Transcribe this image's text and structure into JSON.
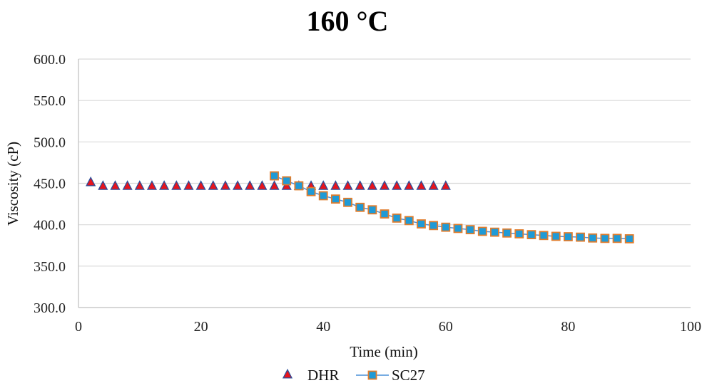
{
  "chart_data": {
    "type": "scatter",
    "title": "160 °C",
    "xlabel": "Time (min)",
    "ylabel": "Viscosity (cP)",
    "xlim": [
      0,
      100
    ],
    "ylim": [
      300,
      600
    ],
    "x_ticks": [
      0,
      20,
      40,
      60,
      80,
      100
    ],
    "y_ticks": [
      300,
      350,
      400,
      450,
      500,
      550,
      600
    ],
    "x_tick_labels": [
      "0",
      "20",
      "40",
      "60",
      "80",
      "100"
    ],
    "y_tick_labels": [
      "300.0",
      "350.0",
      "400.0",
      "450.0",
      "500.0",
      "550.0",
      "600.0"
    ],
    "grid": "horizontal",
    "legend_position": "bottom",
    "series": [
      {
        "name": "DHR",
        "marker": "triangle",
        "line": false,
        "color": "#e8141c",
        "edge_color": "#2e4f9a",
        "x": [
          2,
          4,
          6,
          8,
          10,
          12,
          14,
          16,
          18,
          20,
          22,
          24,
          26,
          28,
          30,
          32,
          34,
          36,
          38,
          40,
          42,
          44,
          46,
          48,
          50,
          52,
          54,
          56,
          58,
          60
        ],
        "y": [
          451.3,
          446.8,
          446.8,
          446.8,
          446.8,
          446.8,
          446.8,
          446.8,
          446.8,
          446.8,
          446.8,
          446.8,
          446.8,
          446.8,
          446.8,
          446.8,
          446.8,
          446.8,
          446.8,
          446.8,
          446.8,
          446.8,
          446.8,
          446.8,
          446.8,
          446.8,
          446.8,
          446.8,
          446.8,
          446.8
        ]
      },
      {
        "name": "SC27",
        "marker": "square",
        "line": true,
        "color": "#1f9ad6",
        "edge_color": "#e07c2c",
        "line_color": "#4a90d9",
        "x": [
          32,
          34,
          36,
          38,
          40,
          42,
          44,
          46,
          48,
          50,
          52,
          54,
          56,
          58,
          60,
          62,
          64,
          66,
          68,
          70,
          72,
          74,
          76,
          78,
          80,
          82,
          84,
          86,
          88,
          90
        ],
        "y": [
          459.0,
          453.0,
          447.0,
          440.0,
          435.0,
          431.0,
          427.0,
          421.0,
          418.0,
          413.0,
          408.0,
          405.0,
          401.0,
          399.0,
          397.0,
          395.5,
          394.0,
          392.0,
          391.0,
          390.0,
          389.0,
          388.0,
          387.0,
          386.0,
          385.5,
          385.0,
          384.0,
          383.5,
          383.5,
          383.0
        ]
      }
    ]
  }
}
